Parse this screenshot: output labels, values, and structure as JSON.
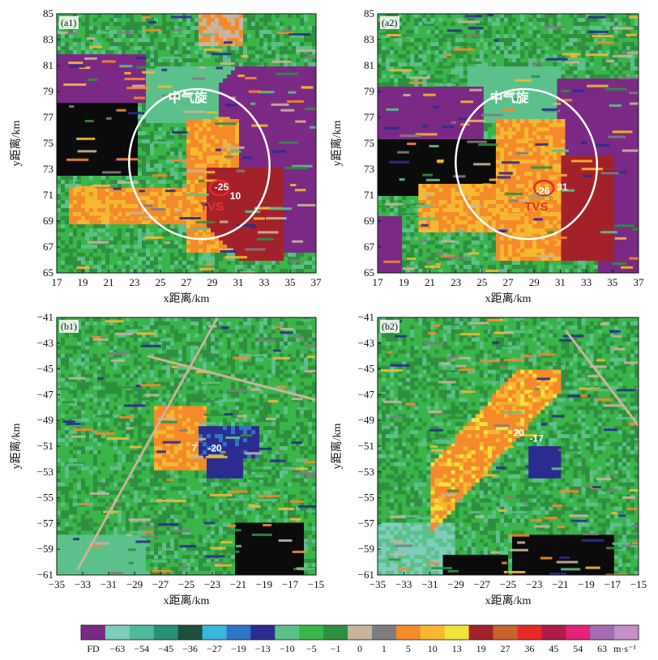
{
  "chart_data": [
    {
      "type": "heatmap",
      "panel": "(a1)",
      "xlabel": "x距离/km",
      "ylabel": "y距离/km",
      "xlim": [
        17,
        37
      ],
      "ylim": [
        65,
        85
      ],
      "xticks": [
        "17",
        "19",
        "21",
        "23",
        "25",
        "27",
        "29",
        "31",
        "33",
        "35",
        "37"
      ],
      "yticks": [
        "65",
        "67",
        "69",
        "71",
        "73",
        "75",
        "77",
        "79",
        "81",
        "83",
        "85"
      ],
      "annotations": {
        "mesocyclone": "中气旋",
        "tvs": "TVS",
        "v_neg": "-25",
        "v_pos": "10"
      },
      "seed": 11,
      "style": "a1"
    },
    {
      "type": "heatmap",
      "panel": "(a2)",
      "xlabel": "x距离/km",
      "ylabel": "y距离/km",
      "xlim": [
        17,
        37
      ],
      "ylim": [
        65,
        85
      ],
      "xticks": [
        "17",
        "19",
        "21",
        "23",
        "25",
        "27",
        "29",
        "31",
        "33",
        "35",
        "37"
      ],
      "yticks": [
        "65",
        "67",
        "69",
        "71",
        "73",
        "75",
        "77",
        "79",
        "81",
        "83",
        "85"
      ],
      "annotations": {
        "mesocyclone": "中气旋",
        "tvs": "TVS",
        "v_neg": "-26",
        "v_pos": "31"
      },
      "seed": 23,
      "style": "a2"
    },
    {
      "type": "heatmap",
      "panel": "(b1)",
      "xlabel": "x距离/km",
      "ylabel": "y距离/km",
      "xlim": [
        -35,
        -15
      ],
      "ylim": [
        -61,
        -41
      ],
      "xticks": [
        "−35",
        "−33",
        "−31",
        "−29",
        "−27",
        "−25",
        "−23",
        "−21",
        "−19",
        "−17",
        "−15"
      ],
      "yticks": [
        "−61",
        "−59",
        "−57",
        "−55",
        "−53",
        "−51",
        "−49",
        "−47",
        "−45",
        "−43",
        "−41"
      ],
      "annotations": {
        "v_pos": "7",
        "v_neg": "-20"
      },
      "seed": 37,
      "style": "b1"
    },
    {
      "type": "heatmap",
      "panel": "(b2)",
      "xlabel": "x距离/km",
      "ylabel": "y距离/km",
      "xlim": [
        -35,
        -15
      ],
      "ylim": [
        -61,
        -41
      ],
      "xticks": [
        "−35",
        "−33",
        "−31",
        "−29",
        "−27",
        "−25",
        "−23",
        "−21",
        "−19",
        "−17",
        "−15"
      ],
      "yticks": [
        "−61",
        "−59",
        "−57",
        "−55",
        "−53",
        "−51",
        "−49",
        "−47",
        "−45",
        "−43",
        "−41"
      ],
      "annotations": {
        "v_pos": "20",
        "v_neg": "-17"
      },
      "seed": 51,
      "style": "b2"
    }
  ],
  "colorbar": {
    "unit": "m·s⁻¹",
    "labels": [
      "FD",
      "−63",
      "−54",
      "−45",
      "−36",
      "−27",
      "−19",
      "−13",
      "−10",
      "−5",
      "−1",
      "0",
      "1",
      "5",
      "10",
      "13",
      "19",
      "27",
      "36",
      "45",
      "54",
      "63"
    ],
    "colors": [
      "#7a2a84",
      "#7fcdbb",
      "#4fb99a",
      "#2a8f78",
      "#1f4f3e",
      "#38b7d8",
      "#3274c4",
      "#2a2c8f",
      "#5cc08a",
      "#39b54a",
      "#2f8f3e",
      "#c8b59a",
      "#7d7d7d",
      "#f58a2a",
      "#f5b830",
      "#f2e33a",
      "#a3222a",
      "#c8632a",
      "#e62a2a",
      "#b01c4a",
      "#e3227a",
      "#a56bb4",
      "#c490c6"
    ]
  }
}
